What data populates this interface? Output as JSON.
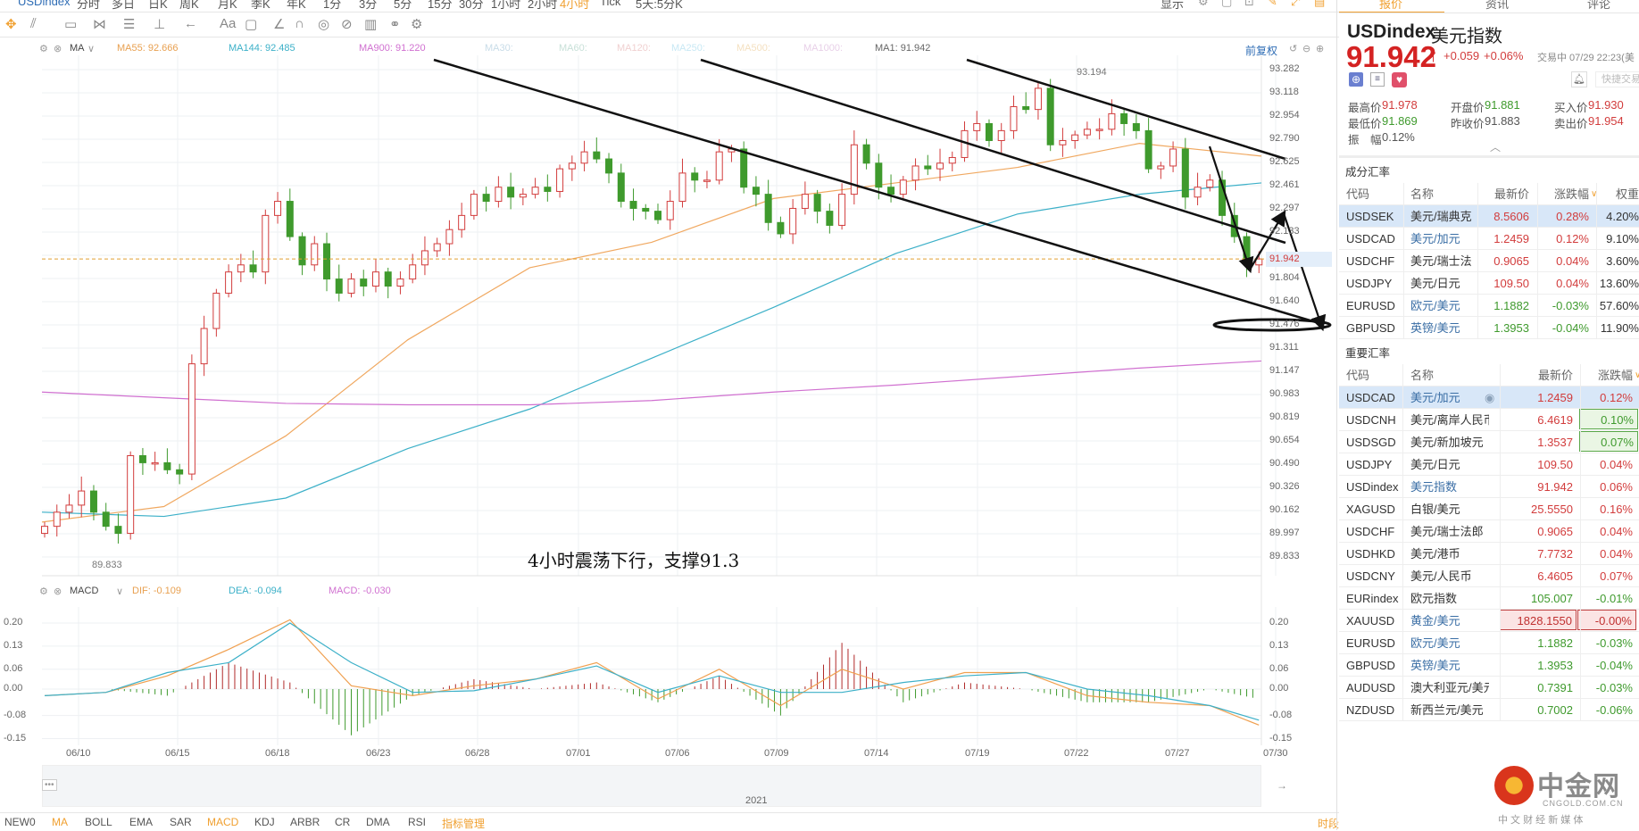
{
  "toolbar": {
    "symbol": "USDindex",
    "periods": [
      "分时",
      "多日",
      "日K",
      "周K",
      "月K",
      "季K",
      "年K",
      "1分",
      "3分",
      "5分",
      "15分",
      "30分",
      "1小时",
      "2小时",
      "4小时",
      "Tick",
      "5天:5分K"
    ],
    "active_period": "4小时",
    "display_label": "显示"
  },
  "draw_tools": [
    "move-icon",
    "line-tool-icon",
    "rect-tool-icon",
    "pattern-tool-icon",
    "fib-tool-icon",
    "measure-tool-icon",
    "arrow-tool-icon",
    "text-tool-icon",
    "note-tool-icon",
    "angle-icon",
    "magnet-icon",
    "lock-icon",
    "hide-icon",
    "trash-icon",
    "link-icon",
    "settings-icon"
  ],
  "ma_header": {
    "name": "MA",
    "ma55": "MA55: 92.666",
    "ma144": "MA144: 92.485",
    "ma900": "MA900: 91.220",
    "ma30": "MA30:",
    "ma60": "MA60:",
    "ma120": "MA120:",
    "ma250": "MA250:",
    "ma500": "MA500:",
    "ma1000": "MA1000:",
    "ma1": "MA1: 91.942",
    "adjust": "前复权"
  },
  "macd_header": {
    "name": "MACD",
    "dif": "DIF: -0.109",
    "dea": "DEA: -0.094",
    "macd": "MACD: -0.030"
  },
  "colors": {
    "up": "#d23c3c",
    "down": "#3f9a2d",
    "ma55": "#f0a860",
    "ma144": "#3cb0c8",
    "ma900": "#d070d0",
    "accent": "#f0a030"
  },
  "chart_data": [
    {
      "type": "candlestick",
      "title": "",
      "ylim": [
        89.833,
        93.282
      ],
      "y_ticks": [
        "93.282",
        "93.118",
        "92.954",
        "92.790",
        "92.625",
        "92.461",
        "92.297",
        "92.133",
        "91.969",
        "91.804",
        "91.640",
        "91.476",
        "91.311",
        "91.147",
        "90.983",
        "90.819",
        "90.654",
        "90.490",
        "90.326",
        "90.162",
        "89.997",
        "89.833"
      ],
      "x_ticks": [
        "06/10",
        "06/15",
        "06/18",
        "06/23",
        "06/28",
        "07/01",
        "07/06",
        "07/09",
        "07/14",
        "07/19",
        "07/22",
        "07/27",
        "07/30"
      ],
      "closes": [
        90.05,
        90.15,
        90.2,
        90.3,
        90.15,
        90.05,
        90.0,
        90.55,
        90.5,
        90.5,
        90.45,
        90.42,
        91.2,
        91.45,
        91.7,
        91.85,
        91.9,
        91.85,
        92.25,
        92.35,
        92.1,
        91.9,
        92.05,
        91.8,
        91.7,
        91.8,
        91.75,
        91.85,
        91.75,
        91.8,
        91.9,
        92.0,
        92.05,
        92.15,
        92.25,
        92.4,
        92.35,
        92.45,
        92.38,
        92.4,
        92.45,
        92.42,
        92.58,
        92.62,
        92.7,
        92.65,
        92.55,
        92.35,
        92.3,
        92.28,
        92.22,
        92.35,
        92.55,
        92.5,
        92.5,
        92.7,
        92.72,
        92.45,
        92.4,
        92.2,
        92.12,
        92.3,
        92.4,
        92.28,
        92.18,
        92.4,
        92.75,
        92.62,
        92.45,
        92.4,
        92.5,
        92.6,
        92.58,
        92.62,
        92.66,
        92.85,
        92.9,
        92.78,
        92.85,
        93.02,
        93.0,
        93.15,
        92.75,
        92.78,
        92.82,
        92.86,
        92.86,
        92.97,
        92.9,
        92.85,
        92.58,
        92.6,
        92.72,
        92.38,
        92.45,
        92.5,
        92.25,
        92.1,
        91.9,
        91.942
      ],
      "last_price": "91.942",
      "high_label": "93.194",
      "low_label": "89.833",
      "ma_lines": [
        {
          "name": "MA55",
          "values": [
            90.08,
            90.19,
            90.69,
            91.37,
            91.88,
            92.06,
            92.37,
            92.48,
            92.59,
            92.76,
            92.67
          ]
        },
        {
          "name": "MA144",
          "values": [
            90.15,
            90.12,
            90.25,
            90.6,
            90.88,
            91.24,
            91.6,
            91.98,
            92.26,
            92.4,
            92.48
          ]
        },
        {
          "name": "MA900",
          "values": [
            91.0,
            90.96,
            90.92,
            90.91,
            90.91,
            90.94,
            91.0,
            91.05,
            91.11,
            91.17,
            91.22
          ]
        }
      ],
      "annotation": "4小时震荡下行，支撑91.3"
    },
    {
      "type": "line",
      "title": "",
      "ylim": [
        -0.15,
        0.2
      ],
      "y_ticks": [
        "0.20",
        "0.13",
        "0.06",
        "0.00",
        "-0.08",
        "-0.15"
      ],
      "series": [
        {
          "name": "DIF",
          "values": [
            -0.02,
            -0.01,
            0.04,
            0.12,
            0.21,
            0.01,
            -0.02,
            0.01,
            0.03,
            0.08,
            -0.03,
            0.06,
            -0.05,
            0.06,
            0.0,
            0.05,
            0.05,
            -0.02,
            -0.04,
            -0.05,
            -0.109
          ]
        },
        {
          "name": "DEA",
          "values": [
            -0.02,
            -0.01,
            0.05,
            0.08,
            0.2,
            0.08,
            -0.01,
            -0.005,
            0.03,
            0.07,
            -0.01,
            0.04,
            -0.01,
            -0.01,
            0.02,
            0.04,
            0.05,
            0.0,
            -0.02,
            -0.05,
            -0.094
          ]
        }
      ]
    }
  ],
  "navigator": {
    "year": "2021",
    "more": "•••"
  },
  "indicators": [
    "NEW0",
    "MA",
    "BOLL",
    "EMA",
    "SAR",
    "MACD",
    "KDJ",
    "ARBR",
    "CR",
    "DMA",
    "RSI"
  ],
  "indicator_manage": "指标管理",
  "period_label": "时段",
  "panel": {
    "tabs": [
      "报价",
      "资讯",
      "评论"
    ],
    "symbol": "USDindex",
    "name": "美元指数",
    "price": "91.942",
    "arrow": "↑",
    "change": "+0.059",
    "change_pct": "+0.06%",
    "status": "交易中 07/29 22:23(美",
    "quick_trade": "快捷交易",
    "stats": [
      {
        "label": "最高价",
        "value": "91.978",
        "c": "red"
      },
      {
        "label": "开盘价",
        "value": "91.881",
        "c": "green"
      },
      {
        "label": "买入价",
        "value": "91.930",
        "c": "red"
      },
      {
        "label": "最低价",
        "value": "91.869",
        "c": "green"
      },
      {
        "label": "昨收价",
        "value": "91.883",
        "c": ""
      },
      {
        "label": "卖出价",
        "value": "91.954",
        "c": "red"
      },
      {
        "label": "振　幅",
        "value": "0.12%",
        "c": ""
      }
    ],
    "components": {
      "title": "成分汇率",
      "headers": [
        "代码",
        "名称",
        "最新价",
        "涨跌幅",
        "权重"
      ],
      "rows": [
        [
          "USDSEK",
          "美元/瑞典克",
          "8.5606",
          "0.28%",
          "4.20%"
        ],
        [
          "USDCAD",
          "美元/加元",
          "1.2459",
          "0.12%",
          "9.10%"
        ],
        [
          "USDCHF",
          "美元/瑞士法",
          "0.9065",
          "0.04%",
          "3.60%"
        ],
        [
          "USDJPY",
          "美元/日元",
          "109.50",
          "0.04%",
          "13.60%"
        ],
        [
          "EURUSD",
          "欧元/美元",
          "1.1882",
          "-0.03%",
          "57.60%"
        ],
        [
          "GBPUSD",
          "英镑/美元",
          "1.3953",
          "-0.04%",
          "11.90%"
        ]
      ]
    },
    "major": {
      "title": "重要汇率",
      "headers": [
        "代码",
        "名称",
        "最新价",
        "涨跌幅"
      ],
      "rows": [
        [
          "USDCAD",
          "美元/加元",
          "1.2459",
          "0.12%"
        ],
        [
          "USDCNH",
          "美元/离岸人民币",
          "6.4619",
          "0.10%"
        ],
        [
          "USDSGD",
          "美元/新加坡元",
          "1.3537",
          "0.07%"
        ],
        [
          "USDJPY",
          "美元/日元",
          "109.50",
          "0.04%"
        ],
        [
          "USDindex",
          "美元指数",
          "91.942",
          "0.06%"
        ],
        [
          "XAGUSD",
          "白银/美元",
          "25.5550",
          "0.16%"
        ],
        [
          "USDCHF",
          "美元/瑞士法郎",
          "0.9065",
          "0.04%"
        ],
        [
          "USDHKD",
          "美元/港币",
          "7.7732",
          "0.04%"
        ],
        [
          "USDCNY",
          "美元/人民币",
          "6.4605",
          "0.07%"
        ],
        [
          "EURindex",
          "欧元指数",
          "105.007",
          "-0.01%"
        ],
        [
          "XAUUSD",
          "黄金/美元",
          "1828.1550",
          "-0.00%"
        ],
        [
          "EURUSD",
          "欧元/美元",
          "1.1882",
          "-0.03%"
        ],
        [
          "GBPUSD",
          "英镑/美元",
          "1.3953",
          "-0.04%"
        ],
        [
          "AUDUSD",
          "澳大利亚元/美元",
          "0.7391",
          "-0.03%"
        ],
        [
          "NZDUSD",
          "新西兰元/美元",
          "0.7002",
          "-0.06%"
        ]
      ]
    }
  },
  "logo": {
    "cn": "中金网",
    "domain": "CNGOLD.COM.CN",
    "slogan": "中 文 财 经 新 媒 体"
  }
}
